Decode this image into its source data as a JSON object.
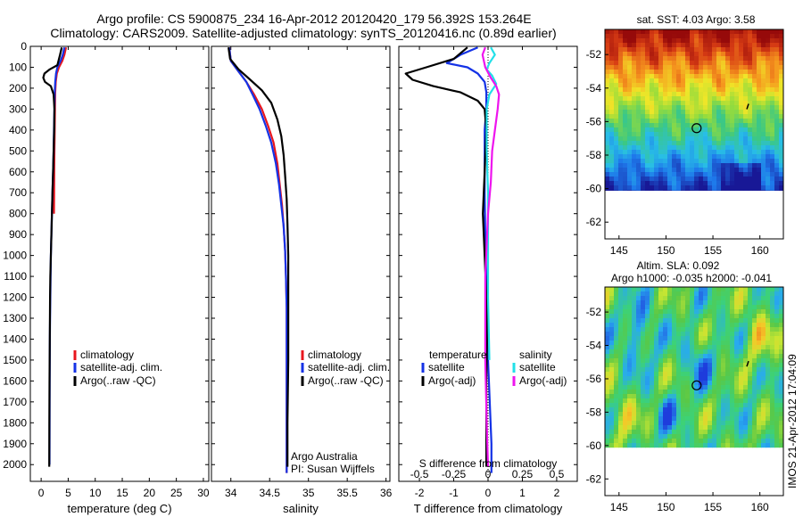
{
  "header": {
    "line1": "Argo profile: CS 5900875_234 16-Apr-2012 20120420_179 56.392S 153.264E",
    "line2": "Climatology: CARS2009. Satellite-adjusted climatology: synTS_20120416.nc (0.89d earlier)"
  },
  "colors": {
    "climatology": "#e8161e",
    "satellite": "#1432e6",
    "argo": "#000000",
    "satellite_salinity": "#22e0e8",
    "argo_salinity_adj": "#ee14ee"
  },
  "axes_shared": {
    "depth_ticks": [
      0,
      100,
      200,
      300,
      400,
      500,
      600,
      700,
      800,
      900,
      1000,
      1100,
      1200,
      1300,
      1400,
      1500,
      1600,
      1700,
      1800,
      1900,
      2000
    ],
    "depth_lim": [
      0,
      2080
    ]
  },
  "chart_data": [
    {
      "type": "line",
      "xlabel": "temperature (deg C)",
      "ylabel": "",
      "xlim": [
        -2,
        31
      ],
      "xticks": [
        0,
        5,
        10,
        15,
        20,
        25,
        30
      ],
      "ylim": [
        0,
        2080
      ],
      "y_reversed": true,
      "legend": {
        "placement": "lower-center",
        "entries": [
          "climatology",
          "satellite-adj. clim.",
          "Argo(..raw -QC)"
        ]
      },
      "series": [
        {
          "name": "climatology",
          "color_key": "climatology",
          "x": [
            4.6,
            4.3,
            3.9,
            3.3,
            2.9,
            2.7,
            2.6,
            2.55,
            2.5,
            2.45,
            2.42,
            2.4,
            2.38
          ],
          "y": [
            5,
            40,
            70,
            100,
            130,
            170,
            220,
            300,
            400,
            500,
            600,
            700,
            800
          ]
        },
        {
          "name": "satellite-adj. clim.",
          "color_key": "satellite",
          "x": [
            4.3,
            4.0,
            3.6,
            3.0,
            2.75,
            2.6,
            2.5,
            2.45,
            2.38,
            2.3,
            2.2,
            2.1,
            2.0,
            1.9,
            1.8,
            1.75,
            1.7,
            1.65,
            1.62,
            1.6,
            1.58,
            1.56,
            1.55
          ],
          "y": [
            5,
            40,
            70,
            100,
            130,
            170,
            220,
            300,
            400,
            500,
            600,
            700,
            800,
            900,
            1000,
            1100,
            1200,
            1300,
            1400,
            1500,
            1600,
            1800,
            2000
          ]
        },
        {
          "name": "Argo(..raw -QC)",
          "color_key": "argo",
          "x": [
            3.8,
            3.5,
            3.0,
            1.6,
            0.6,
            0.4,
            0.7,
            1.8,
            2.3,
            2.45,
            2.4,
            2.3,
            2.2,
            2.1,
            2.0,
            1.9,
            1.8,
            1.7,
            1.65,
            1.6,
            1.55,
            1.52,
            1.5
          ],
          "y": [
            5,
            40,
            90,
            110,
            130,
            150,
            170,
            190,
            230,
            300,
            400,
            500,
            600,
            700,
            800,
            900,
            1000,
            1100,
            1200,
            1400,
            1600,
            1800,
            2010
          ]
        }
      ]
    },
    {
      "type": "line",
      "xlabel": "salinity",
      "ylabel": "",
      "xlim": [
        33.75,
        36.05
      ],
      "xticks": [
        34,
        34.5,
        35,
        35.5,
        36
      ],
      "ylim": [
        0,
        2080
      ],
      "y_reversed": true,
      "legend": {
        "placement": "lower-right",
        "entries": [
          "climatology",
          "satellite-adj. clim.",
          "Argo(..raw -QC)"
        ]
      },
      "annotations": [
        "Argo Australia",
        "PI: Susan Wijffels"
      ],
      "series": [
        {
          "name": "climatology",
          "color_key": "climatology",
          "x": [
            33.98,
            34.0,
            34.1,
            34.2,
            34.3,
            34.4,
            34.48,
            34.55,
            34.6,
            34.63,
            34.66,
            34.68,
            34.7,
            34.71,
            34.72,
            34.72,
            34.72,
            34.72,
            34.72,
            34.72
          ],
          "y": [
            5,
            70,
            120,
            170,
            230,
            300,
            380,
            460,
            560,
            660,
            760,
            860,
            980,
            1100,
            1250,
            1400,
            1550,
            1700,
            1850,
            2040
          ]
        },
        {
          "name": "satellite-adj. clim.",
          "color_key": "satellite",
          "x": [
            33.98,
            34.0,
            34.1,
            34.2,
            34.28,
            34.37,
            34.45,
            34.52,
            34.58,
            34.62,
            34.65,
            34.68,
            34.7,
            34.71,
            34.72,
            34.72,
            34.72,
            34.72,
            34.72
          ],
          "y": [
            5,
            70,
            120,
            170,
            230,
            300,
            380,
            460,
            560,
            660,
            760,
            860,
            980,
            1100,
            1250,
            1400,
            1600,
            1800,
            2040
          ]
        },
        {
          "name": "Argo(..raw -QC)",
          "color_key": "argo",
          "x": [
            33.97,
            33.99,
            34.1,
            34.25,
            34.4,
            34.52,
            34.6,
            34.65,
            34.68,
            34.7,
            34.72,
            34.73,
            34.74,
            34.74,
            34.74,
            34.73,
            34.73
          ],
          "y": [
            5,
            60,
            110,
            160,
            210,
            270,
            350,
            430,
            520,
            620,
            730,
            850,
            1000,
            1200,
            1500,
            1800,
            2010
          ]
        }
      ]
    },
    {
      "type": "line",
      "xlabel": "T difference from climatology",
      "x2label": "S difference from climatology",
      "ylabel": "",
      "xlim": [
        -2.6,
        2.6
      ],
      "xticks": [
        -2,
        -1,
        0,
        1,
        2
      ],
      "x2lim": [
        -0.65,
        0.65
      ],
      "x2ticks": [
        -0.5,
        -0.25,
        0,
        0.25,
        0.5
      ],
      "ylim": [
        0,
        2080
      ],
      "y_reversed": true,
      "legend": {
        "placement": "lower-center",
        "temperature_title": "temperature",
        "salinity_title": "salinity",
        "entries": [
          "satellite",
          "Argo(-adj)",
          "satellite",
          "Argo(-adj)"
        ]
      },
      "series": [
        {
          "name": "satellite",
          "color_key": "satellite",
          "axis": "T",
          "x": [
            -0.3,
            -0.8,
            -1.2,
            -0.6,
            -0.3,
            -0.1,
            -0.05,
            -0.05,
            -0.1,
            -0.1,
            -0.1,
            -0.08,
            -0.05,
            -0.03,
            0.0,
            0.05,
            0.1,
            0.1
          ],
          "y": [
            5,
            40,
            80,
            100,
            130,
            170,
            220,
            300,
            400,
            500,
            700,
            900,
            1100,
            1300,
            1500,
            1700,
            1900,
            2040
          ]
        },
        {
          "name": "Argo(-adj)",
          "color_key": "argo",
          "axis": "T",
          "x": [
            -0.6,
            -1.0,
            -1.8,
            -2.4,
            -2.2,
            -1.6,
            -0.8,
            -0.3,
            -0.1,
            -0.05,
            -0.1,
            -0.15,
            -0.1,
            -0.05,
            -0.03,
            -0.05,
            -0.05,
            -0.05
          ],
          "y": [
            5,
            60,
            100,
            130,
            160,
            190,
            220,
            260,
            300,
            400,
            600,
            800,
            1000,
            1200,
            1400,
            1600,
            1800,
            2010
          ]
        },
        {
          "name": "satellite",
          "color_key": "satellite_salinity",
          "axis": "S",
          "x": [
            0.02,
            0.05,
            0.01,
            -0.01,
            0.03,
            0.06,
            0.01,
            -0.01,
            -0.01,
            -0.01,
            0.0,
            0.0,
            0.0,
            0.01
          ],
          "y": [
            5,
            40,
            80,
            110,
            140,
            180,
            230,
            300,
            400,
            500,
            700,
            900,
            1200,
            1500
          ]
        },
        {
          "name": "Argo(-adj)",
          "color_key": "argo_salinity_adj",
          "axis": "S",
          "x": [
            -0.02,
            -0.04,
            -0.02,
            0.02,
            0.06,
            0.08,
            0.07,
            0.05,
            0.03,
            0.02,
            0.0,
            -0.02,
            -0.02,
            -0.01,
            0.0
          ],
          "y": [
            5,
            40,
            100,
            150,
            190,
            230,
            300,
            400,
            500,
            650,
            800,
            1100,
            1500,
            1800,
            2010
          ]
        }
      ]
    }
  ],
  "maps": [
    {
      "title_lines": [
        "sat. SST: 4.03  Argo: 3.58"
      ],
      "xticks": [
        145,
        150,
        155,
        160
      ],
      "xlim": [
        143.5,
        162.5
      ],
      "yticks": [
        -52,
        -54,
        -56,
        -58,
        -60,
        -62
      ],
      "ylim": [
        -63,
        -50.5
      ],
      "data_lat_range": [
        -60.1,
        -50.5
      ],
      "argo_position": {
        "lon": 153.264,
        "lat": -56.392
      },
      "mark_position": {
        "lon": 158.7,
        "lat": -55.1
      }
    },
    {
      "title_lines": [
        "Altim. SLA: 0.092",
        "Argo h1000: -0.035 h2000: -0.041"
      ],
      "xticks": [
        145,
        150,
        155,
        160
      ],
      "xlim": [
        143.5,
        162.5
      ],
      "yticks": [
        -52,
        -54,
        -56,
        -58,
        -60,
        -62
      ],
      "ylim": [
        -63,
        -50.5
      ],
      "data_lat_range": [
        -60.1,
        -50.5
      ],
      "argo_position": {
        "lon": 153.264,
        "lat": -56.392
      },
      "mark_position": {
        "lon": 158.7,
        "lat": -55.1
      }
    }
  ],
  "footer_stamp": "IMOS 21-Apr-2012 17:04:09"
}
